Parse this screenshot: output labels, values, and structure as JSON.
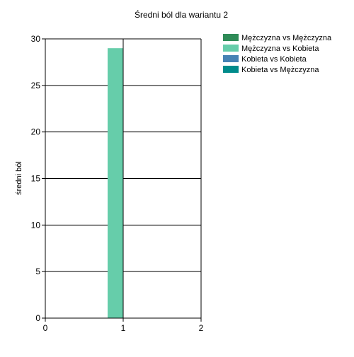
{
  "chart_data": {
    "type": "bar",
    "title": "Średni ból dla wariantu 2",
    "xlabel": "",
    "ylabel": "średni ból",
    "xlim": [
      0,
      2
    ],
    "ylim": [
      0,
      30
    ],
    "x_ticks": [
      0,
      1,
      2
    ],
    "y_ticks": [
      0,
      5,
      10,
      15,
      20,
      25,
      30
    ],
    "grid": "horizontal",
    "legend_position": "top-right",
    "categories": [
      1
    ],
    "series": [
      {
        "name": "Mężczyzna vs Mężczyzna",
        "color": "#2E8B57",
        "values": [
          0
        ]
      },
      {
        "name": "Mężczyzna vs Kobieta",
        "color": "#66CDAA",
        "values": [
          29
        ]
      },
      {
        "name": "Kobieta vs Kobieta",
        "color": "#4682B4",
        "values": [
          0
        ]
      },
      {
        "name": "Kobieta vs Mężczyzna",
        "color": "#008B8B",
        "values": [
          0
        ]
      }
    ]
  }
}
